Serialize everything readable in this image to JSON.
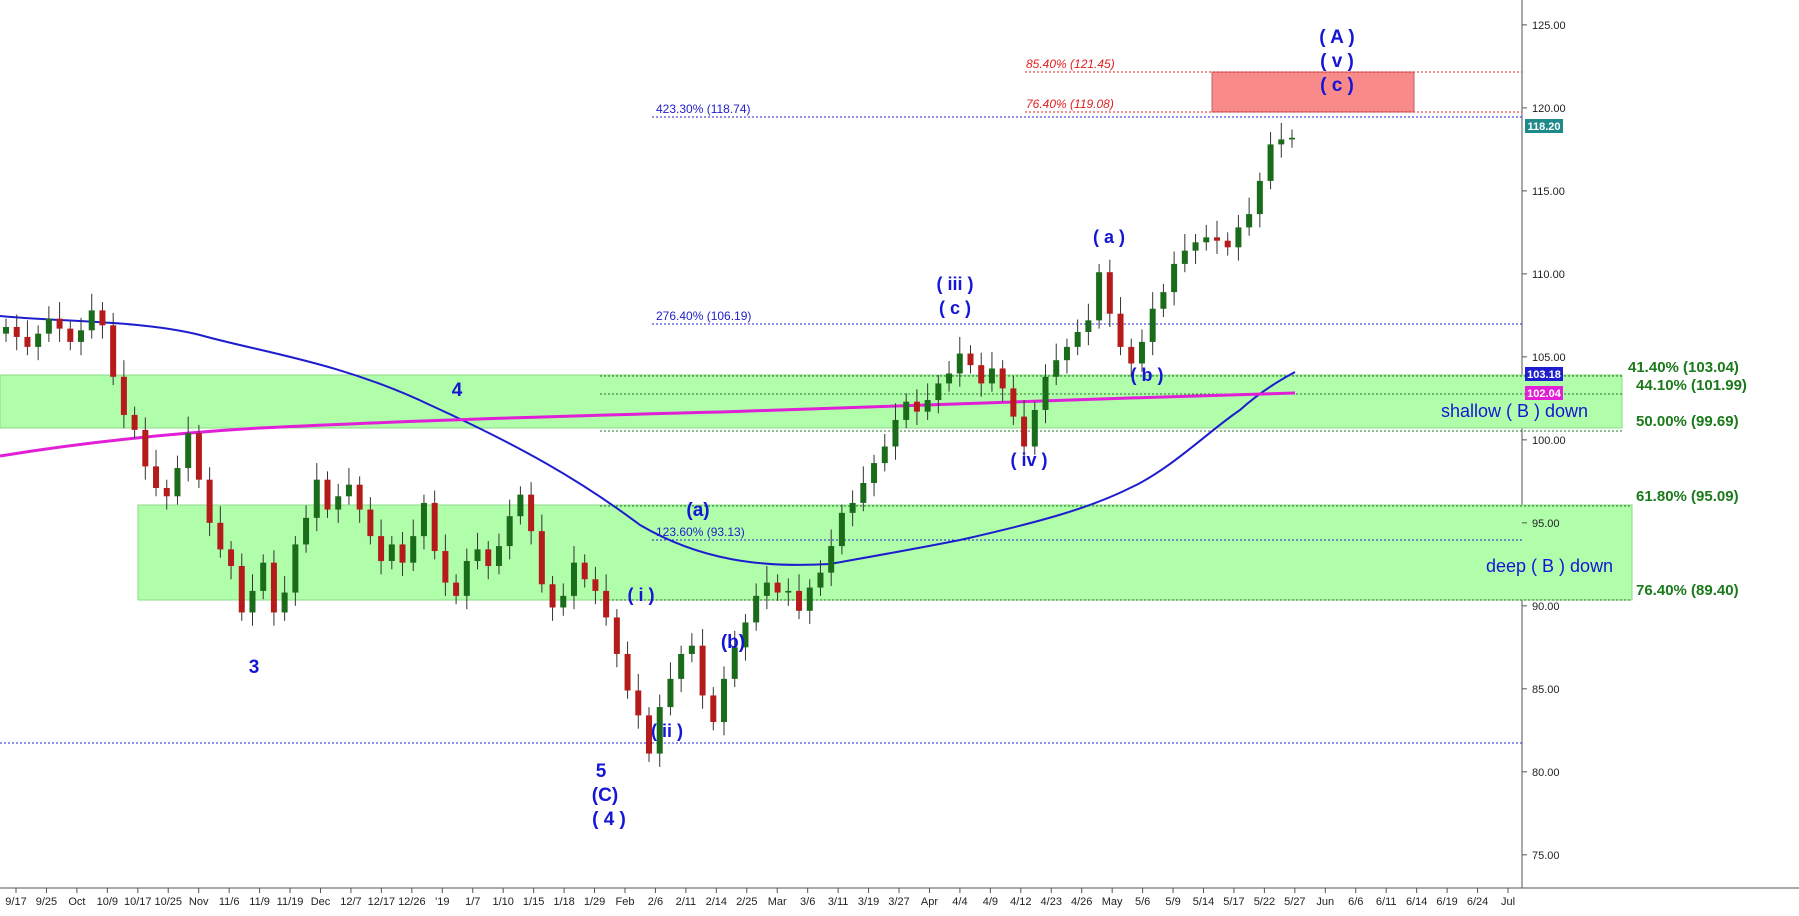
{
  "chart_data": {
    "type": "candlestick",
    "y_axis": {
      "range": [
        73.0,
        126.5
      ],
      "position": "right",
      "ticks": [
        "125.00",
        "120.00",
        "115.00",
        "110.00",
        "105.00",
        "100.00",
        "95.00",
        "90.00",
        "85.00",
        "80.00",
        "75.00"
      ]
    },
    "x_axis": {
      "ticks": [
        "9/17",
        "9/25",
        "Oct",
        "10/9",
        "10/17",
        "10/25",
        "Nov",
        "11/6",
        "11/9",
        "11/19",
        "Dec",
        "12/7",
        "12/17",
        "12/26",
        "'19",
        "1/7",
        "1/10",
        "1/15",
        "1/18",
        "1/29",
        "Feb",
        "2/6",
        "2/11",
        "2/14",
        "2/25",
        "Mar",
        "3/6",
        "3/11",
        "3/19",
        "3/27",
        "Apr",
        "4/4",
        "4/9",
        "4/12",
        "4/23",
        "4/26",
        "May",
        "5/6",
        "5/9",
        "5/14",
        "5/17",
        "5/22",
        "5/27",
        "Jun",
        "6/6",
        "6/11",
        "6/14",
        "6/19",
        "6/24",
        "Jul"
      ]
    },
    "price_tags": [
      {
        "value": "118.20",
        "color": "#1f8a8a"
      },
      {
        "value": "103.18",
        "color": "#1d1dcf"
      },
      {
        "value": "102.04",
        "color": "#e01fd6"
      }
    ],
    "fib_levels": [
      {
        "label": "85.40% (121.45)",
        "value": 121.45,
        "color": "red"
      },
      {
        "label": "76.40% (119.08)",
        "value": 119.08,
        "color": "red"
      },
      {
        "label": "423.30% (118.74)",
        "value": 118.74,
        "color": "blue"
      },
      {
        "label": "276.40% (106.19)",
        "value": 106.19,
        "color": "blue"
      },
      {
        "label": "123.60% (93.13)",
        "value": 93.13,
        "color": "blue"
      },
      {
        "label": "41.40% (103.04)",
        "value": 103.04,
        "color": "green"
      },
      {
        "label": "44.10% (101.99)",
        "value": 101.99,
        "color": "green"
      },
      {
        "label": "50.00% (99.69)",
        "value": 99.69,
        "color": "green"
      },
      {
        "label": "61.80% (95.09)",
        "value": 95.09,
        "color": "green"
      },
      {
        "label": "76.40% (89.40)",
        "value": 89.4,
        "color": "green"
      }
    ],
    "support_line": 80.7,
    "zones": [
      {
        "label": "shallow ( B ) down",
        "top": 103.04,
        "bottom": 99.69
      },
      {
        "label": "deep ( B ) down",
        "top": 95.09,
        "bottom": 89.4
      },
      {
        "label": "",
        "top": 121.45,
        "bottom": 119.08,
        "color": "#f98a8a"
      }
    ],
    "wave_labels": [
      "( A )",
      "( v )",
      "( c )",
      "( a )",
      "( iii )",
      "( c )",
      "( b )",
      "( iv )",
      "4",
      "3",
      "5",
      "(C)",
      "( 4 )",
      "(a)",
      "(b)",
      "( i )",
      "( ii )"
    ],
    "moving_averages": [
      {
        "color": "#1d1dcf"
      },
      {
        "color": "#e01fd6"
      }
    ],
    "price_path": [
      106.8,
      106.2,
      105.6,
      106.4,
      107.3,
      106.7,
      105.9,
      106.6,
      107.8,
      106.9,
      103.8,
      101.5,
      100.6,
      98.4,
      97.1,
      96.6,
      98.3,
      100.4,
      97.6,
      95.0,
      93.4,
      92.4,
      89.6,
      90.9,
      92.6,
      89.6,
      90.8,
      93.7,
      95.3,
      97.6,
      95.8,
      96.6,
      97.3,
      95.8,
      94.2,
      92.7,
      93.7,
      92.6,
      94.2,
      96.2,
      93.3,
      91.4,
      90.6,
      92.7,
      93.4,
      92.4,
      93.6,
      95.4,
      96.7,
      94.5,
      91.3,
      89.9,
      90.6,
      92.6,
      91.6,
      90.9,
      89.3,
      87.1,
      84.9,
      83.4,
      81.1,
      83.9,
      85.6,
      87.1,
      87.6,
      84.6,
      83.0,
      85.6,
      87.5,
      89.0,
      90.6,
      91.4,
      90.8,
      90.9,
      89.7,
      91.1,
      92.0,
      93.6,
      95.6,
      96.2,
      97.4,
      98.6,
      99.6,
      101.2,
      102.3,
      101.7,
      102.4,
      103.4,
      104.0,
      105.2,
      104.5,
      103.4,
      104.3,
      103.1,
      101.4,
      99.6,
      101.8,
      103.8,
      104.8,
      105.6,
      106.5,
      107.2,
      110.1,
      107.6,
      105.6,
      104.6,
      105.9,
      107.9,
      108.9,
      110.6,
      111.4,
      111.9,
      112.2,
      112.0,
      111.6,
      112.8,
      113.6,
      115.6,
      117.8,
      118.1,
      118.2
    ]
  }
}
